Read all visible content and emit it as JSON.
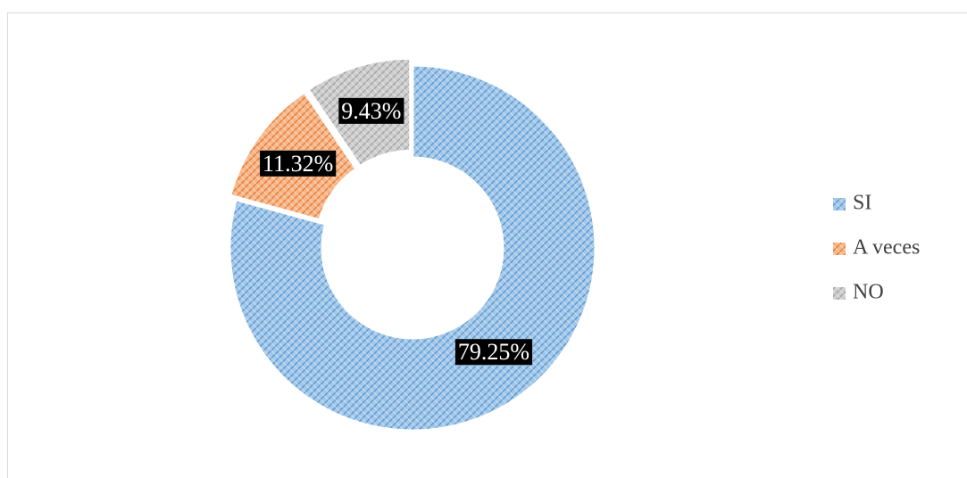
{
  "chart_data": {
    "type": "donut",
    "categories": [
      "SI",
      "A veces",
      "NO"
    ],
    "values": [
      79.25,
      11.32,
      9.43
    ],
    "value_labels": [
      "79.25%",
      "11.32%",
      "9.43%"
    ],
    "colors": [
      "#5b9bd5",
      "#ed7d31",
      "#a5a5a5"
    ],
    "legend": "right"
  }
}
